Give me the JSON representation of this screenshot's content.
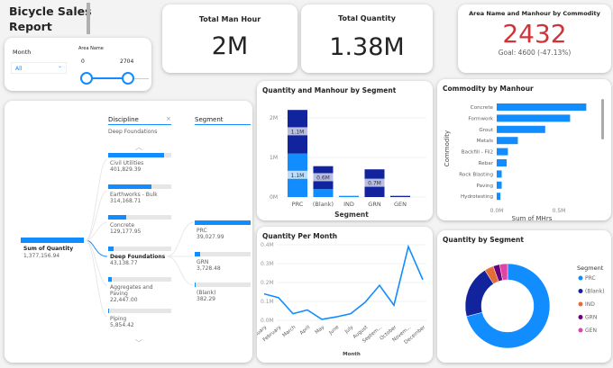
{
  "report": {
    "title_line1": "Bicycle Sales",
    "title_line2": "Report"
  },
  "slicers": {
    "month": {
      "label": "Month",
      "value": "All"
    },
    "area_name": {
      "label": "Area Name",
      "min": "0",
      "max": "2704",
      "range": [
        0,
        2704
      ]
    }
  },
  "cards": {
    "total_man_hour": {
      "label": "Total Man Hour",
      "value": "2M"
    },
    "total_quantity": {
      "label": "Total Quantity",
      "value": "1.38M"
    }
  },
  "kpi": {
    "label": "Area Name and Manhour by Commodity",
    "value": "2432",
    "goal": "Goal: 4600 (-47.13%)",
    "color": "#d13438"
  },
  "decomp": {
    "root": {
      "label": "Sum of Quantity",
      "value": "1,377,156.94"
    },
    "level1": {
      "header": "Discipline",
      "selected": "Deep Foundations",
      "items": [
        {
          "label": "Civil Utilities",
          "value": "401,829.39",
          "frac": 0.88
        },
        {
          "label": "Earthworks - Bulk",
          "value": "314,168.71",
          "frac": 0.68
        },
        {
          "label": "Concrete",
          "value": "129,177.95",
          "frac": 0.28
        },
        {
          "label": "Deep Foundations",
          "value": "43,138.77",
          "frac": 0.09
        },
        {
          "label": "Aggregates and Paving",
          "value": "22,447.00",
          "frac": 0.05
        },
        {
          "label": "Piping",
          "value": "5,854.42",
          "frac": 0.01
        }
      ]
    },
    "level2": {
      "header": "Segment",
      "items": [
        {
          "label": "PRC",
          "value": "39,027.99",
          "frac": 1.0
        },
        {
          "label": "GRN",
          "value": "3,728.48",
          "frac": 0.1
        },
        {
          "label": "(Blank)",
          "value": "382.29",
          "frac": 0.01
        }
      ]
    }
  },
  "chart_data": [
    {
      "type": "bar",
      "stacked": true,
      "title": "Quantity and Manhour by Segment",
      "xlabel": "Segment",
      "ylabel": "",
      "categories": [
        "PRC",
        "(Blank)",
        "IND",
        "GRN",
        "GEN"
      ],
      "series": [
        {
          "values": [
            1100000,
            200000,
            30000,
            0,
            0
          ],
          "color": "#118dff",
          "labels": [
            "1.1M",
            "",
            "",
            "",
            ""
          ]
        },
        {
          "values": [
            1100000,
            580000,
            0,
            700000,
            30000
          ],
          "color": "#12239e",
          "labels": [
            "1.1M",
            "0.6M",
            "",
            "0.7M",
            ""
          ]
        }
      ],
      "yticks": [
        "0M",
        "1M",
        "2M"
      ],
      "ylim": [
        0,
        2300000
      ]
    },
    {
      "type": "bar",
      "orientation": "horizontal",
      "title": "Commodity by Manhour",
      "xlabel": "Sum of MHrs",
      "ylabel": "Commodity",
      "categories": [
        "Concrete",
        "Formwork",
        "Grout",
        "Metals",
        "Backfill - Fil2",
        "Rebar",
        "Rock Blasting",
        "Paving",
        "Hydrotesting"
      ],
      "values": [
        720000,
        590000,
        390000,
        170000,
        90000,
        80000,
        40000,
        40000,
        30000
      ],
      "xticks": [
        "0.0M",
        "0.5M"
      ],
      "color": "#118dff"
    },
    {
      "type": "line",
      "title": "Quantity Per Month",
      "xlabel": "Month",
      "categories": [
        "January",
        "February",
        "March",
        "April",
        "May",
        "June",
        "July",
        "August",
        "Septem...",
        "October",
        "Novem...",
        "December"
      ],
      "values": [
        140000,
        120000,
        35000,
        55000,
        5000,
        18000,
        35000,
        95000,
        185000,
        80000,
        390000,
        215000
      ],
      "yticks": [
        "0.0M",
        "0.1M",
        "0.2M",
        "0.3M",
        "0.4M"
      ],
      "ylim": [
        0,
        400000
      ],
      "color": "#118dff"
    },
    {
      "type": "pie",
      "donut": true,
      "title": "Quantity by Segment",
      "legend_title": "Segment",
      "legend_position": "right",
      "categories": [
        "PRC",
        "(Blank)",
        "IND",
        "GRN",
        "GEN"
      ],
      "values": [
        71,
        20,
        3.5,
        2.5,
        3
      ],
      "colors": [
        "#118dff",
        "#12239e",
        "#e66c37",
        "#6b007b",
        "#e044a7"
      ]
    }
  ]
}
